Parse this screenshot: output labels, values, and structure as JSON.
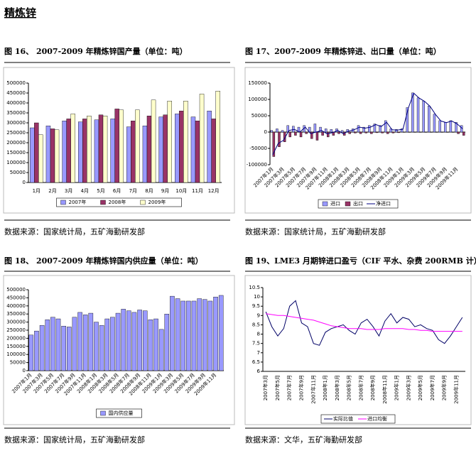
{
  "page_title": "精炼锌",
  "chart_data": [
    {
      "type": "bar",
      "title": "图 16、 2007-2009 年精炼锌国产量（单位：吨）",
      "source": "数据来源：国家统计局，五矿海勤研发部",
      "categories": [
        "1月",
        "2月",
        "3月",
        "4月",
        "5月",
        "6月",
        "7月",
        "8月",
        "9月",
        "10月",
        "11月",
        "12月"
      ],
      "series": [
        {
          "name": "2007年",
          "color": "#9999ff",
          "values": [
            275000,
            285000,
            310000,
            305000,
            315000,
            320000,
            280000,
            285000,
            330000,
            345000,
            330000,
            360000
          ]
        },
        {
          "name": "2008年",
          "color": "#993366",
          "values": [
            300000,
            270000,
            320000,
            320000,
            340000,
            370000,
            310000,
            335000,
            340000,
            360000,
            310000,
            320000
          ]
        },
        {
          "name": "2009年",
          "color": "#ffffcc",
          "values": [
            240000,
            265000,
            345000,
            335000,
            335000,
            365000,
            365000,
            415000,
            410000,
            410000,
            445000,
            460000
          ]
        }
      ],
      "ylim": [
        0,
        500000
      ],
      "yticks": [
        0,
        50000,
        100000,
        150000,
        200000,
        250000,
        300000,
        350000,
        400000,
        450000,
        500000
      ]
    },
    {
      "type": "bar",
      "title": "图 17、2007-2009 年精炼锌进、出口量（单位：吨）",
      "source": "数据来源：国家统计局，五矿海勤研发部",
      "categories": [
        "2007年1月",
        null,
        "2007年3月",
        null,
        "2007年5月",
        null,
        "2007年7月",
        null,
        "2007年9月",
        null,
        "2007年11月",
        null,
        "2008年1月",
        null,
        "2008年3月",
        null,
        "2008年5月",
        null,
        "2008年7月",
        null,
        "2008年9月",
        null,
        "2008年11月",
        null,
        "2009年1月",
        null,
        "2009年3月",
        null,
        "2009年5月",
        null,
        "2009年7月",
        null,
        "2009年9月",
        null,
        "2009年11月",
        null
      ],
      "series": [
        {
          "name": "进口",
          "color": "#9999ff",
          "values": [
            5000,
            10000,
            5000,
            20000,
            18000,
            15000,
            20000,
            15000,
            25000,
            15000,
            10000,
            8000,
            10000,
            5000,
            8000,
            10000,
            20000,
            15000,
            20000,
            25000,
            20000,
            35000,
            10000,
            8000,
            10000,
            75000,
            120000,
            105000,
            95000,
            80000,
            55000,
            35000,
            30000,
            35000,
            30000,
            20000
          ]
        },
        {
          "name": "出口",
          "color": "#993366",
          "values": [
            -75000,
            -45000,
            -30000,
            -15000,
            -10000,
            -15000,
            -5000,
            -20000,
            -25000,
            -10000,
            -15000,
            -10000,
            -5000,
            -10000,
            -5000,
            -3000,
            -5000,
            -3000,
            -5000,
            -2000,
            -3000,
            -5000,
            -3000,
            -2000,
            -1000,
            -1000,
            -1000,
            -1000,
            -1000,
            -1000,
            -1000,
            -1000,
            -1000,
            -1000,
            -5000,
            -10000
          ]
        },
        {
          "name": "净进口",
          "type": "line",
          "color": "#000080",
          "values": [
            -70000,
            -35000,
            -25000,
            5000,
            8000,
            0,
            15000,
            -5000,
            0,
            5000,
            -5000,
            -2000,
            5000,
            -5000,
            3000,
            7000,
            15000,
            12000,
            15000,
            23000,
            17000,
            30000,
            7000,
            6000,
            9000,
            74000,
            119000,
            104000,
            94000,
            79000,
            54000,
            34000,
            29000,
            34000,
            25000,
            10000
          ]
        }
      ],
      "ylim": [
        -100000,
        150000
      ],
      "yticks": [
        -100000,
        -50000,
        0,
        50000,
        100000,
        150000
      ]
    },
    {
      "type": "bar",
      "title": "图 18、 2007-2009 年精炼锌国内供应量（单位：吨）",
      "source": "数据来源：国家统计局，五矿海勤研发部",
      "categories": [
        "2007年1月",
        null,
        "2007年3月",
        null,
        "2007年5月",
        null,
        "2007年7月",
        null,
        "2007年9月",
        null,
        "2007年11月",
        null,
        "2008年1月",
        null,
        "2008年3月",
        null,
        "2008年5月",
        null,
        "2008年7月",
        null,
        "2008年9月",
        null,
        "2008年11月",
        null,
        "2009年1月",
        null,
        "2009年3月",
        null,
        "2009年5月",
        null,
        "2009年7月",
        null,
        "2009年9月",
        null,
        "2009年11月",
        null
      ],
      "series": [
        {
          "name": "国内供应量",
          "color": "#9999ff",
          "values": [
            220000,
            245000,
            280000,
            315000,
            330000,
            320000,
            275000,
            270000,
            330000,
            360000,
            345000,
            355000,
            300000,
            280000,
            320000,
            330000,
            355000,
            380000,
            370000,
            360000,
            375000,
            370000,
            315000,
            320000,
            255000,
            350000,
            460000,
            445000,
            430000,
            430000,
            430000,
            445000,
            440000,
            430000,
            455000,
            465000
          ]
        }
      ],
      "ylim": [
        0,
        500000
      ],
      "yticks": [
        0,
        50000,
        100000,
        150000,
        200000,
        250000,
        300000,
        350000,
        400000,
        450000,
        500000
      ]
    },
    {
      "type": "line",
      "title": "图 19、LME3 月期锌进口盈亏（CIF 平水、杂费 200RMB 计）",
      "source": "数据来源：文华，五矿海勤研发部",
      "categories": [
        "2007年3月",
        null,
        "2007年5月",
        null,
        "2007年7月",
        null,
        "2007年9月",
        null,
        "2007年11月",
        null,
        "2008年1月",
        null,
        "2008年3月",
        null,
        "2008年5月",
        null,
        "2008年7月",
        null,
        "2008年9月",
        null,
        "2008年11月",
        null,
        "2009年1月",
        null,
        "2009年3月",
        null,
        "2009年5月",
        null,
        "2009年7月",
        null,
        "2009年9月",
        null,
        "2009年11月",
        null
      ],
      "series": [
        {
          "name": "实际比值",
          "type": "line",
          "color": "#000066",
          "values": [
            9.2,
            8.4,
            7.9,
            8.3,
            9.5,
            9.8,
            8.6,
            8.4,
            7.5,
            7.4,
            8.1,
            8.3,
            8.4,
            8.5,
            8.2,
            8.0,
            8.6,
            8.8,
            8.4,
            7.9,
            8.7,
            9.1,
            8.6,
            8.9,
            8.8,
            8.4,
            8.5,
            8.3,
            8.2,
            7.7,
            7.5,
            7.9,
            8.4,
            8.9
          ]
        },
        {
          "name": "进口均衡",
          "type": "line",
          "color": "#ff00ff",
          "values": [
            9.1,
            9.05,
            9.0,
            9.0,
            8.95,
            8.9,
            8.85,
            8.8,
            8.75,
            8.65,
            8.55,
            8.45,
            8.4,
            8.35,
            8.3,
            8.3,
            8.3,
            8.25,
            8.25,
            8.25,
            8.3,
            8.3,
            8.3,
            8.3,
            8.25,
            8.25,
            8.2,
            8.2,
            8.15,
            8.15,
            8.15,
            8.15,
            8.15,
            8.15
          ]
        }
      ],
      "ylim": [
        6,
        10.5
      ],
      "yticks": [
        6,
        6.5,
        7,
        7.5,
        8,
        8.5,
        9,
        9.5,
        10,
        10.5
      ]
    }
  ]
}
